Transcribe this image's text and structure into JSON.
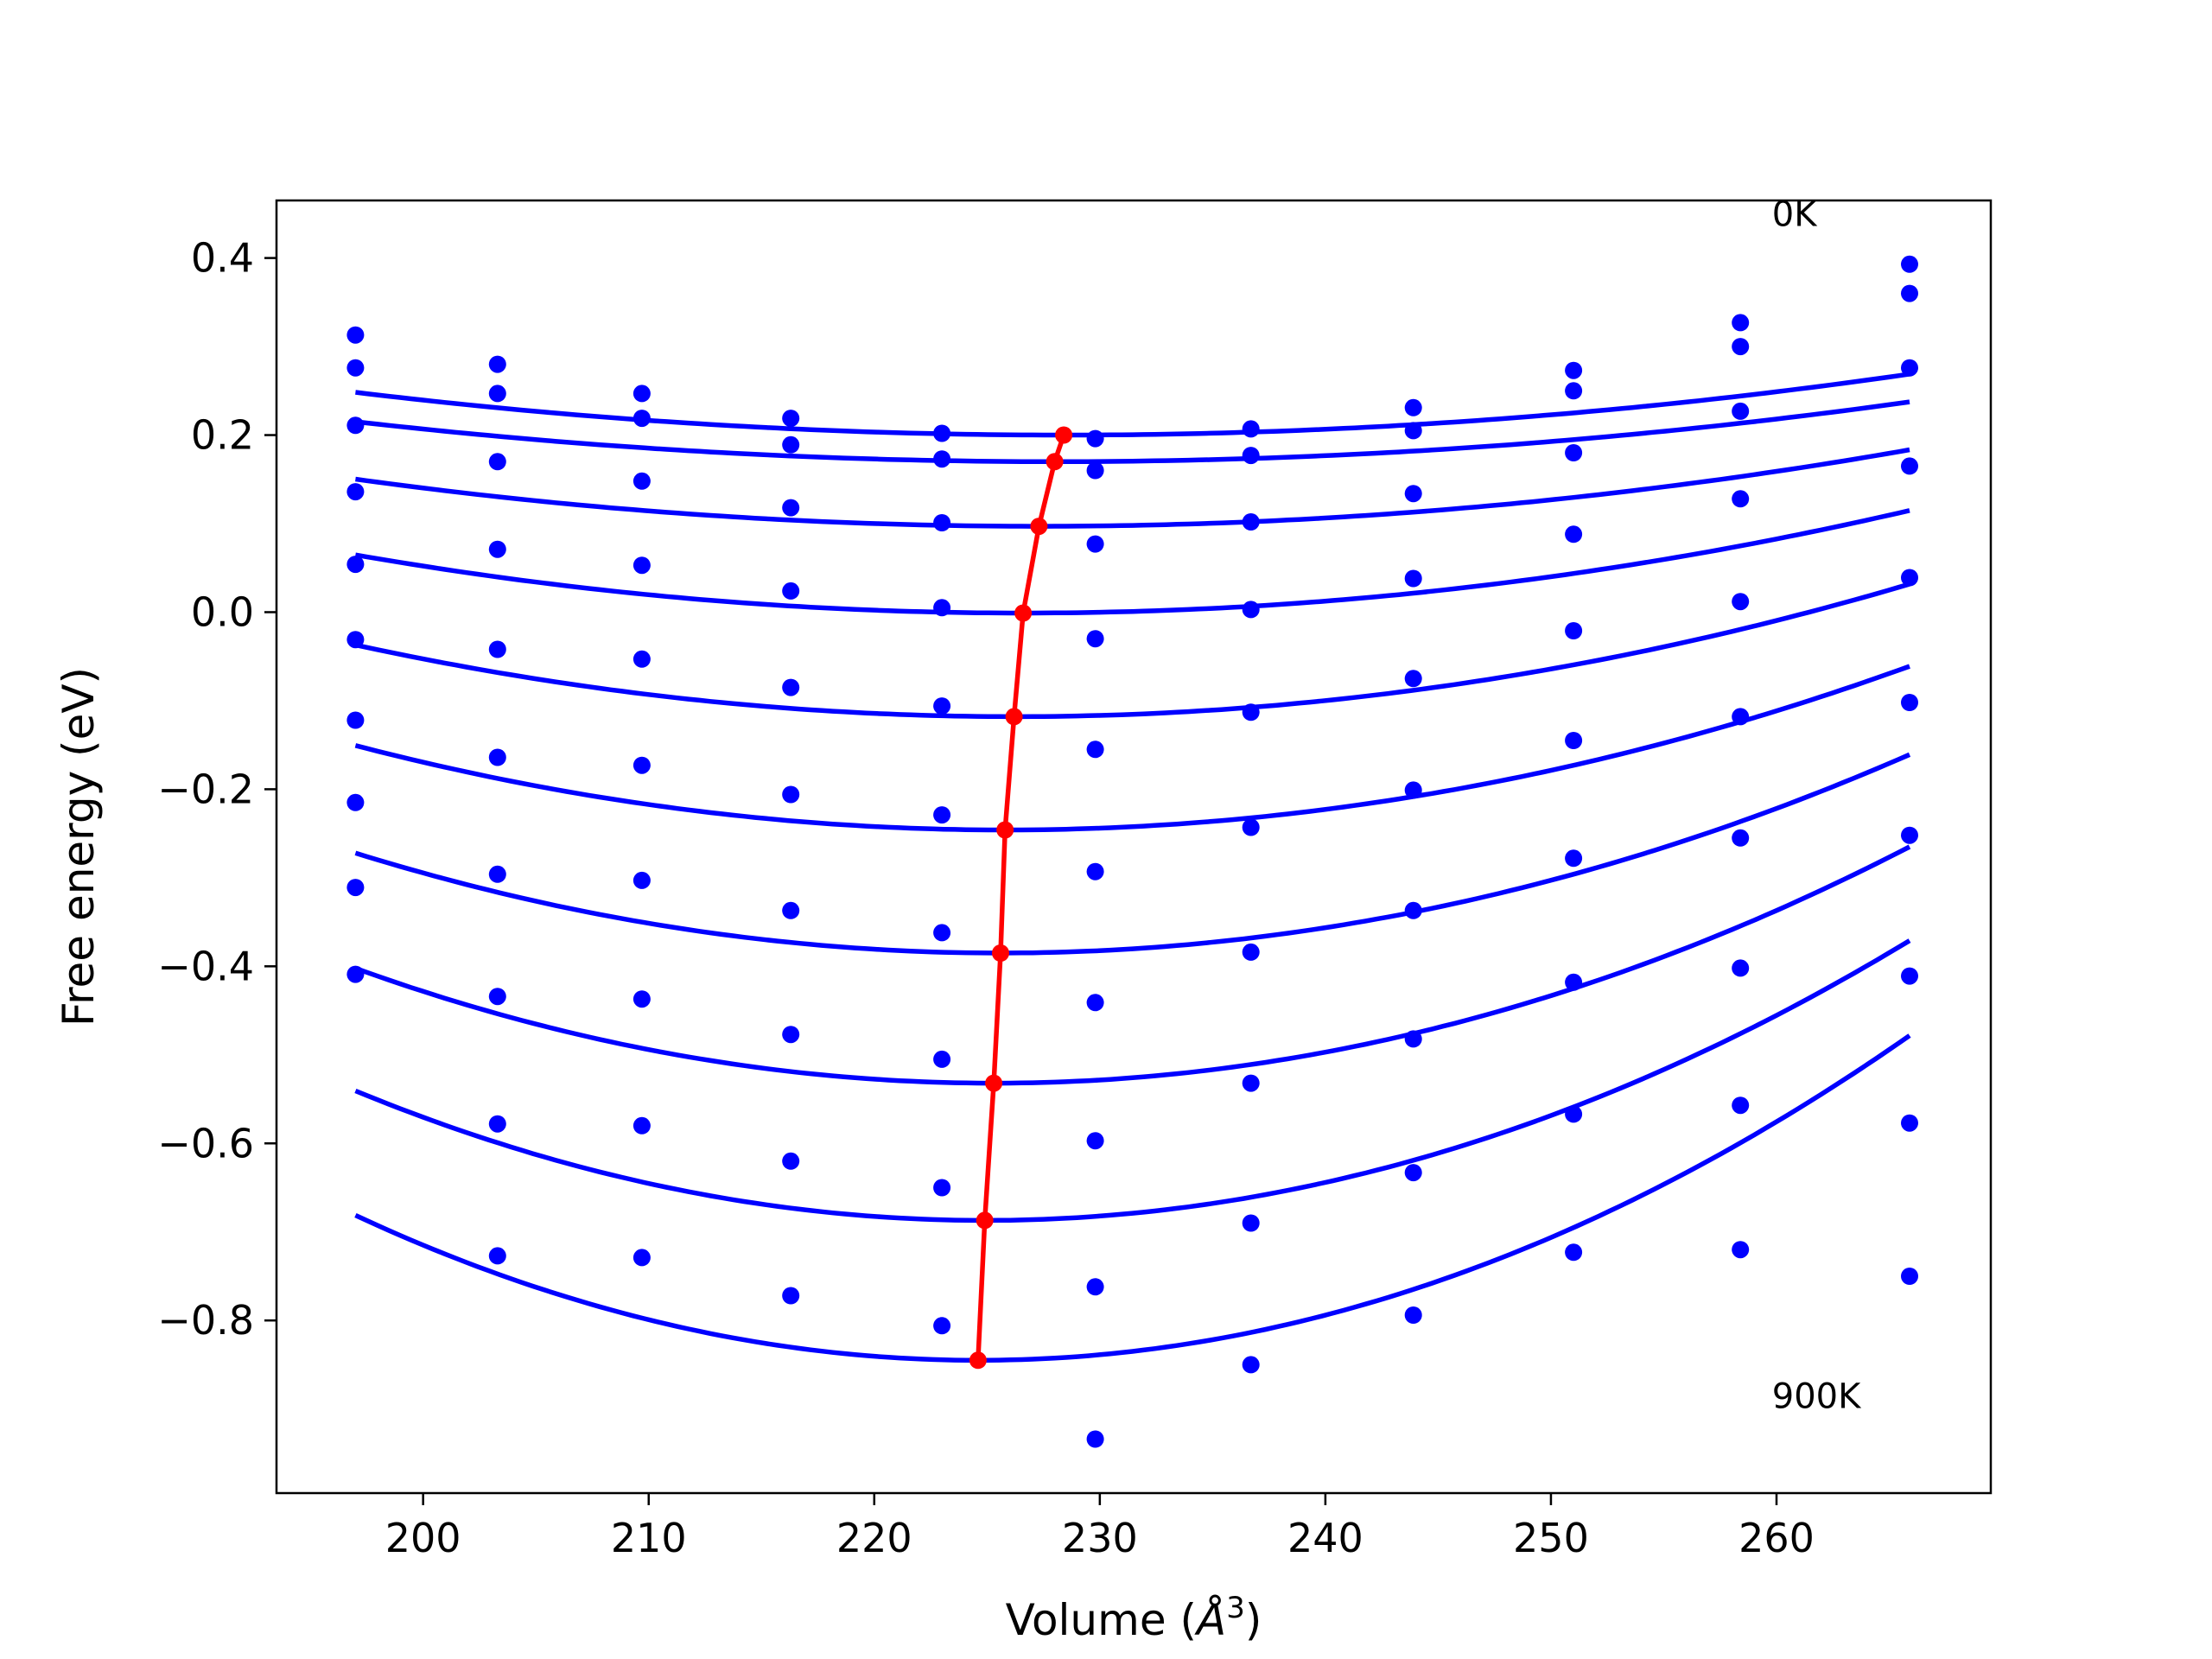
{
  "chart_data": {
    "type": "scatter",
    "title": "",
    "xlabel": "Volume (Å³)",
    "xlabel_parts": {
      "main": "Volume (",
      "symbol": "Å",
      "sup": "3",
      "close": ")"
    },
    "ylabel": "Free energy (eV)",
    "xlim": [
      193.5,
      269.5
    ],
    "ylim": [
      -0.995,
      0.465
    ],
    "xticks": [
      200,
      210,
      220,
      230,
      240,
      250,
      260
    ],
    "xtick_labels": [
      "200",
      "210",
      "220",
      "230",
      "240",
      "250",
      "260"
    ],
    "yticks": [
      0.4,
      0.2,
      0.0,
      -0.2,
      -0.4,
      -0.6,
      -0.8
    ],
    "ytick_labels": [
      "0.4",
      "0.2",
      "0.0",
      "−0.2",
      "−0.4",
      "−0.6",
      "−0.8"
    ],
    "grid": false,
    "colors": {
      "data": "#0000ff",
      "minimum": "#ff0000",
      "axes": "#000000"
    },
    "annotations": [
      {
        "text": "0K",
        "x": 259.8,
        "y": 0.45
      },
      {
        "text": "900K",
        "x": 259.8,
        "y": -0.885
      }
    ],
    "volumes": [
      197.0,
      203.3,
      209.7,
      216.3,
      223.0,
      229.8,
      236.7,
      243.9,
      251.0,
      258.4,
      265.9
    ],
    "series": [
      {
        "values": [
          0.313,
          0.28,
          0.247,
          0.219,
          0.202,
          0.196,
          0.207,
          0.231,
          0.273,
          0.327,
          0.393
        ]
      },
      {
        "values": [
          0.276,
          0.247,
          0.219,
          0.189,
          0.173,
          0.16,
          0.177,
          0.205,
          0.25,
          0.3,
          0.36
        ]
      },
      {
        "values": [
          0.211,
          0.17,
          0.148,
          0.118,
          0.101,
          0.077,
          0.102,
          0.134,
          0.18,
          0.227,
          0.276
        ]
      },
      {
        "values": [
          0.136,
          0.071,
          0.053,
          0.024,
          0.005,
          -0.03,
          0.003,
          0.038,
          0.088,
          0.128,
          0.165
        ]
      },
      {
        "values": [
          0.054,
          -0.042,
          -0.053,
          -0.085,
          -0.106,
          -0.155,
          -0.113,
          -0.075,
          -0.021,
          0.012,
          0.039
        ]
      },
      {
        "values": [
          -0.031,
          -0.164,
          -0.173,
          -0.206,
          -0.229,
          -0.293,
          -0.243,
          -0.201,
          -0.145,
          -0.118,
          -0.102
        ]
      },
      {
        "values": [
          -0.122,
          -0.296,
          -0.303,
          -0.337,
          -0.362,
          -0.441,
          -0.384,
          -0.337,
          -0.278,
          -0.255,
          -0.252
        ]
      },
      {
        "values": [
          -0.215,
          -0.434,
          -0.437,
          -0.477,
          -0.505,
          -0.597,
          -0.532,
          -0.482,
          -0.418,
          -0.402,
          -0.411
        ]
      },
      {
        "values": [
          -0.311,
          -0.578,
          -0.58,
          -0.62,
          -0.65,
          -0.762,
          -0.69,
          -0.633,
          -0.567,
          -0.557,
          -0.577
        ]
      },
      {
        "values": [
          -0.409,
          -0.727,
          -0.729,
          -0.772,
          -0.806,
          -0.934,
          -0.85,
          -0.794,
          -0.723,
          -0.72,
          -0.75
        ]
      }
    ],
    "fits": [
      {
        "a": 4.9e-05,
        "v0": 228.4,
        "fmin": 0.2,
        "b": 0
      },
      {
        "a": 4.7e-05,
        "v0": 228.0,
        "fmin": 0.17,
        "b": 0
      },
      {
        "a": 5.8e-05,
        "v0": 227.3,
        "fmin": 0.097,
        "b": 0.00025
      },
      {
        "a": 7.5e-05,
        "v0": 226.6,
        "fmin": -0.001,
        "b": 0.0005
      },
      {
        "a": 9.5e-05,
        "v0": 226.2,
        "fmin": -0.118,
        "b": 0.0009
      },
      {
        "a": 0.000115,
        "v0": 225.8,
        "fmin": -0.246,
        "b": 0.0013
      },
      {
        "a": 0.000138,
        "v0": 225.6,
        "fmin": -0.385,
        "b": 0.0017
      },
      {
        "a": 0.000162,
        "v0": 225.3,
        "fmin": -0.532,
        "b": 0.0021
      },
      {
        "a": 0.000188,
        "v0": 224.9,
        "fmin": -0.687,
        "b": 0.0026
      },
      {
        "a": 0.000215,
        "v0": 224.6,
        "fmin": -0.845,
        "b": 0.003
      }
    ],
    "minimum_path": {
      "x": [
        228.4,
        228.0,
        227.3,
        226.6,
        226.2,
        225.8,
        225.6,
        225.3,
        224.9,
        224.6
      ],
      "y": [
        0.2,
        0.17,
        0.097,
        -0.001,
        -0.118,
        -0.246,
        -0.385,
        -0.532,
        -0.687,
        -0.845
      ]
    }
  }
}
